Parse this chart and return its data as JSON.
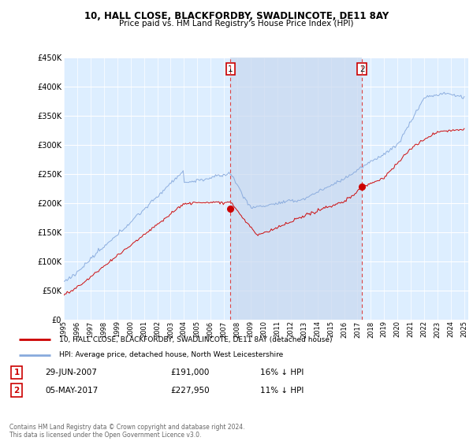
{
  "title": "10, HALL CLOSE, BLACKFORDBY, SWADLINCOTE, DE11 8AY",
  "subtitle": "Price paid vs. HM Land Registry's House Price Index (HPI)",
  "y_values": [
    0,
    50000,
    100000,
    150000,
    200000,
    250000,
    300000,
    350000,
    400000,
    450000
  ],
  "ylim": [
    0,
    450000
  ],
  "x_start_year": 1995,
  "x_end_year": 2025,
  "sale1_date": 2007.49,
  "sale1_price": 191000,
  "sale2_date": 2017.35,
  "sale2_price": 227950,
  "line_color_property": "#cc0000",
  "line_color_hpi": "#88aadd",
  "legend_property": "10, HALL CLOSE, BLACKFORDBY, SWADLINCOTE, DE11 8AY (detached house)",
  "legend_hpi": "HPI: Average price, detached house, North West Leicestershire",
  "footnote": "Contains HM Land Registry data © Crown copyright and database right 2024.\nThis data is licensed under the Open Government Licence v3.0.",
  "background_plot": "#ddeeff",
  "background_fig": "#ffffff",
  "grid_color": "#ffffff",
  "shade_color": "#c8d8ee",
  "dashed_line_color": "#dd4444"
}
